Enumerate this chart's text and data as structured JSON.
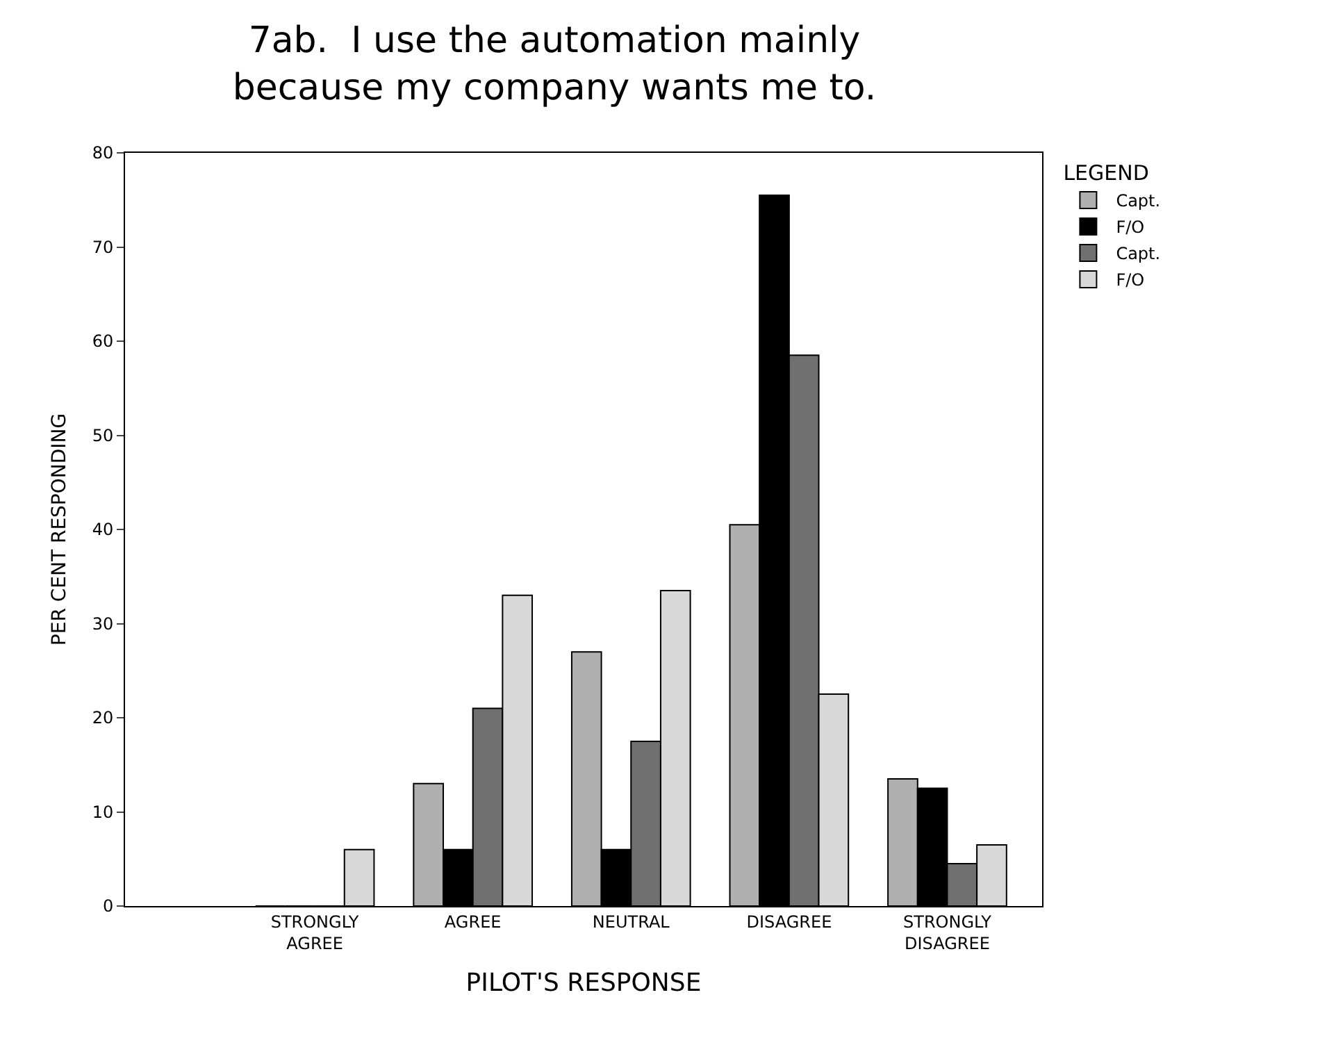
{
  "chart_data": {
    "type": "bar",
    "title": "7ab.  I use the automation mainly\nbecause my company wants me to.",
    "xlabel": "PILOT'S RESPONSE",
    "ylabel": "PER CENT RESPONDING",
    "legend_title": "LEGEND",
    "categories": [
      "STRONGLY\nAGREE",
      "AGREE",
      "NEUTRAL",
      "DISAGREE",
      "STRONGLY\nDISAGREE"
    ],
    "series": [
      {
        "name": "Capt.",
        "color": "#b0b0b0",
        "values": [
          0,
          13,
          27,
          40.5,
          13.5
        ]
      },
      {
        "name": "F/O",
        "color": "#000000",
        "values": [
          0,
          6,
          6,
          75.5,
          12.5
        ]
      },
      {
        "name": "Capt.",
        "color": "#707070",
        "values": [
          0,
          21,
          17.5,
          58.5,
          4.5
        ]
      },
      {
        "name": "F/O",
        "color": "#d8d8d8",
        "values": [
          6,
          33,
          33.5,
          22.5,
          6.5
        ]
      }
    ],
    "ylim": [
      0,
      80
    ],
    "yticks": [
      0,
      10,
      20,
      30,
      40,
      50,
      60,
      70,
      80
    ],
    "legend": "top right"
  }
}
